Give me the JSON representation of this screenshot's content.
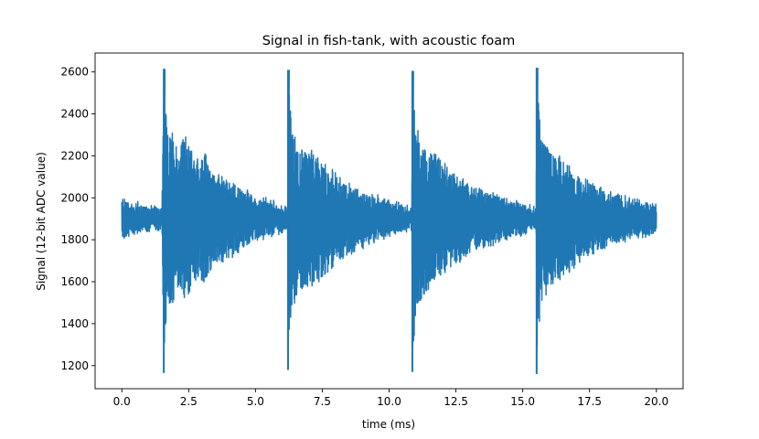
{
  "chart_data": {
    "type": "line",
    "title": "Signal in fish-tank, with acoustic foam",
    "xlabel": "time (ms)",
    "ylabel": "Signal (12-bit ADC value)",
    "xlim": [
      -1.0,
      21.0
    ],
    "ylim": [
      1090,
      2690
    ],
    "xticks": [
      0.0,
      2.5,
      5.0,
      7.5,
      10.0,
      12.5,
      15.0,
      17.5,
      20.0
    ],
    "xtick_labels": [
      "0.0",
      "2.5",
      "5.0",
      "7.5",
      "10.0",
      "12.5",
      "15.0",
      "17.5",
      "20.0"
    ],
    "yticks": [
      1200,
      1400,
      1600,
      1800,
      2000,
      2200,
      2400,
      2600
    ],
    "ytick_labels": [
      "1200",
      "1400",
      "1600",
      "1800",
      "2000",
      "2200",
      "2400",
      "2600"
    ],
    "grid": false,
    "legend": "none",
    "color": "#1f77b4",
    "series": [
      {
        "name": "",
        "baseline": 1900,
        "pulses": [
          {
            "start_ms": 1.57,
            "peak_max": 2615,
            "peak_min": 1165
          },
          {
            "start_ms": 6.22,
            "peak_max": 2610,
            "peak_min": 1180
          },
          {
            "start_ms": 10.87,
            "peak_max": 2605,
            "peak_min": 1170
          },
          {
            "start_ms": 15.52,
            "peak_max": 2620,
            "peak_min": 1160
          }
        ],
        "envelope": [
          [
            0.0,
            115
          ],
          [
            0.4,
            90
          ],
          [
            0.9,
            75
          ],
          [
            1.5,
            60
          ],
          [
            1.57,
            710
          ],
          [
            1.6,
            620
          ],
          [
            1.7,
            420
          ],
          [
            1.9,
            430
          ],
          [
            2.1,
            350
          ],
          [
            2.4,
            420
          ],
          [
            2.6,
            340
          ],
          [
            2.9,
            300
          ],
          [
            3.1,
            330
          ],
          [
            3.4,
            240
          ],
          [
            3.8,
            210
          ],
          [
            4.5,
            160
          ],
          [
            5.0,
            120
          ],
          [
            5.5,
            100
          ],
          [
            6.0,
            80
          ],
          [
            6.2,
            60
          ],
          [
            6.22,
            710
          ],
          [
            6.25,
            620
          ],
          [
            6.4,
            420
          ],
          [
            6.6,
            380
          ],
          [
            6.8,
            330
          ],
          [
            7.1,
            350
          ],
          [
            7.5,
            280
          ],
          [
            7.9,
            240
          ],
          [
            8.4,
            190
          ],
          [
            9.0,
            150
          ],
          [
            9.5,
            120
          ],
          [
            10.0,
            95
          ],
          [
            10.5,
            80
          ],
          [
            10.85,
            60
          ],
          [
            10.87,
            710
          ],
          [
            10.9,
            620
          ],
          [
            11.1,
            420
          ],
          [
            11.3,
            380
          ],
          [
            11.6,
            330
          ],
          [
            11.9,
            300
          ],
          [
            12.4,
            240
          ],
          [
            13.0,
            180
          ],
          [
            13.6,
            150
          ],
          [
            14.2,
            120
          ],
          [
            14.8,
            90
          ],
          [
            15.5,
            60
          ],
          [
            15.52,
            710
          ],
          [
            15.55,
            620
          ],
          [
            15.7,
            420
          ],
          [
            15.9,
            380
          ],
          [
            16.1,
            330
          ],
          [
            16.4,
            300
          ],
          [
            16.8,
            260
          ],
          [
            17.3,
            200
          ],
          [
            18.0,
            160
          ],
          [
            18.7,
            120
          ],
          [
            19.3,
            100
          ],
          [
            20.0,
            80
          ]
        ]
      }
    ]
  }
}
